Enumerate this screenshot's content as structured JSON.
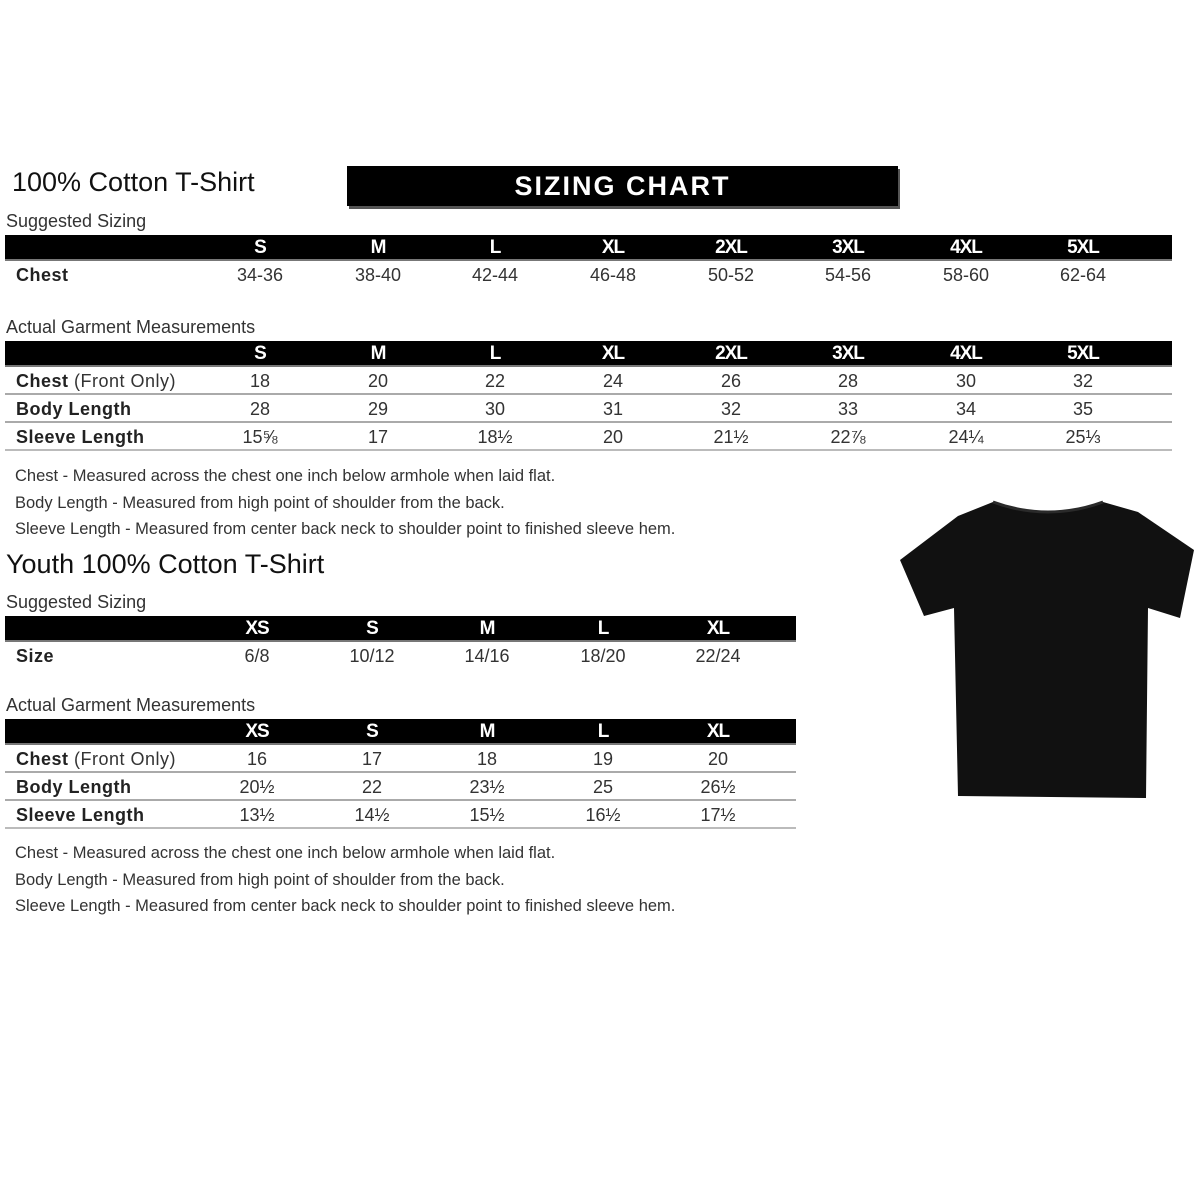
{
  "adult": {
    "title": "100% Cotton T-Shirt",
    "banner": "SIZING CHART",
    "suggested_label": "Suggested Sizing",
    "sizes": [
      "S",
      "M",
      "L",
      "XL",
      "2XL",
      "3XL",
      "4XL",
      "5XL"
    ],
    "suggested_rows": [
      {
        "label": "Chest",
        "values": [
          "34-36",
          "38-40",
          "42-44",
          "46-48",
          "50-52",
          "54-56",
          "58-60",
          "62-64"
        ]
      }
    ],
    "actual_label": "Actual Garment Measurements",
    "actual_rows": [
      {
        "label": "Chest",
        "label_note": "(Front Only)",
        "values": [
          "18",
          "20",
          "22",
          "24",
          "26",
          "28",
          "30",
          "32"
        ]
      },
      {
        "label": "Body Length",
        "values": [
          "28",
          "29",
          "30",
          "31",
          "32",
          "33",
          "34",
          "35"
        ]
      },
      {
        "label": "Sleeve Length",
        "values": [
          "15⅝",
          "17",
          "18½",
          "20",
          "21½",
          "22⅞",
          "24¼",
          "25⅓"
        ]
      }
    ],
    "notes": [
      "Chest - Measured across the chest one inch below armhole when laid flat.",
      "Body Length - Measured from high point of shoulder from the back.",
      "Sleeve Length - Measured from center back neck to shoulder point to finished sleeve hem."
    ]
  },
  "youth": {
    "title": "Youth 100% Cotton T-Shirt",
    "suggested_label": "Suggested Sizing",
    "sizes": [
      "XS",
      "S",
      "M",
      "L",
      "XL"
    ],
    "suggested_rows": [
      {
        "label": "Size",
        "values": [
          "6/8",
          "10/12",
          "14/16",
          "18/20",
          "22/24"
        ]
      }
    ],
    "actual_label": "Actual Garment Measurements",
    "actual_rows": [
      {
        "label": "Chest",
        "label_note": "(Front Only)",
        "values": [
          "16",
          "17",
          "18",
          "19",
          "20"
        ]
      },
      {
        "label": "Body Length",
        "values": [
          "20½",
          "22",
          "23½",
          "25",
          "26½"
        ]
      },
      {
        "label": "Sleeve Length",
        "values": [
          "13½",
          "14½",
          "15½",
          "16½",
          "17½"
        ]
      }
    ],
    "notes": [
      "Chest - Measured across the chest one inch below armhole when laid flat.",
      "Body Length - Measured from high point of shoulder from the back.",
      "Sleeve Length - Measured from center back neck to shoulder point to finished sleeve hem."
    ]
  },
  "image": {
    "icon": "tshirt-icon",
    "color": "#111111"
  }
}
